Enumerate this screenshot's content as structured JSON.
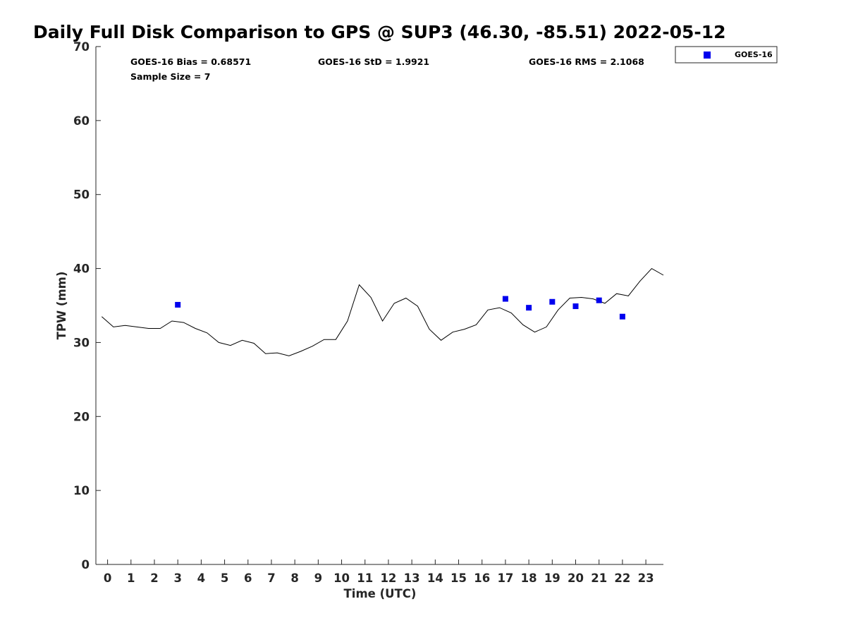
{
  "chart_data": {
    "type": "line",
    "title": "Daily Full Disk Comparison to GPS @ SUP3 (46.30, -85.51) 2022-05-12",
    "xlabel": "Time (UTC)",
    "ylabel": "TPW (mm)",
    "xlim": [
      -0.5,
      23.75
    ],
    "ylim": [
      0,
      70
    ],
    "x_ticks": [
      0,
      1,
      2,
      3,
      4,
      5,
      6,
      7,
      8,
      9,
      10,
      11,
      12,
      13,
      14,
      15,
      16,
      17,
      18,
      19,
      20,
      21,
      22,
      23
    ],
    "y_ticks": [
      0,
      10,
      20,
      30,
      40,
      50,
      60,
      70
    ],
    "grid": false,
    "legend_position": "outside-top-right",
    "stats": {
      "bias": "GOES-16 Bias = 0.68571",
      "std": "GOES-16 StD = 1.9921",
      "rms": "GOES-16 RMS = 2.1068",
      "sample": "Sample Size = 7"
    },
    "series": [
      {
        "type": "line",
        "color": "#000000",
        "x": [
          -0.25,
          0.25,
          0.75,
          1.25,
          1.75,
          2.25,
          2.75,
          3.25,
          3.75,
          4.25,
          4.75,
          5.25,
          5.75,
          6.25,
          6.75,
          7.25,
          7.75,
          8.25,
          8.75,
          9.25,
          9.75,
          10.25,
          10.75,
          11.25,
          11.75,
          12.25,
          12.75,
          13.25,
          13.75,
          14.25,
          14.75,
          15.25,
          15.75,
          16.25,
          16.75,
          17.25,
          17.75,
          18.25,
          18.75,
          19.25,
          19.75,
          20.25,
          20.75,
          21.25,
          21.75,
          22.25,
          22.75,
          23.25,
          23.75
        ],
        "y": [
          33.5,
          32.1,
          32.3,
          32.1,
          31.9,
          31.9,
          32.9,
          32.7,
          31.9,
          31.3,
          30.0,
          29.6,
          30.3,
          29.9,
          28.5,
          28.6,
          28.2,
          28.8,
          29.5,
          30.4,
          30.4,
          32.9,
          37.8,
          36.1,
          32.9,
          35.3,
          36.0,
          34.9,
          31.8,
          30.3,
          31.4,
          31.8,
          32.4,
          34.4,
          34.7,
          34.0,
          32.4,
          31.4,
          32.1,
          34.4,
          36.0,
          36.1,
          35.9,
          35.3,
          36.6,
          36.3,
          38.3,
          40.0,
          39.1
        ]
      },
      {
        "name": "GOES-16",
        "type": "scatter",
        "marker": "square",
        "color": "#0000ee",
        "x": [
          3,
          17,
          18,
          19,
          20,
          21,
          22
        ],
        "y": [
          35.1,
          35.9,
          34.7,
          35.5,
          34.9,
          35.7,
          33.5
        ]
      }
    ]
  }
}
